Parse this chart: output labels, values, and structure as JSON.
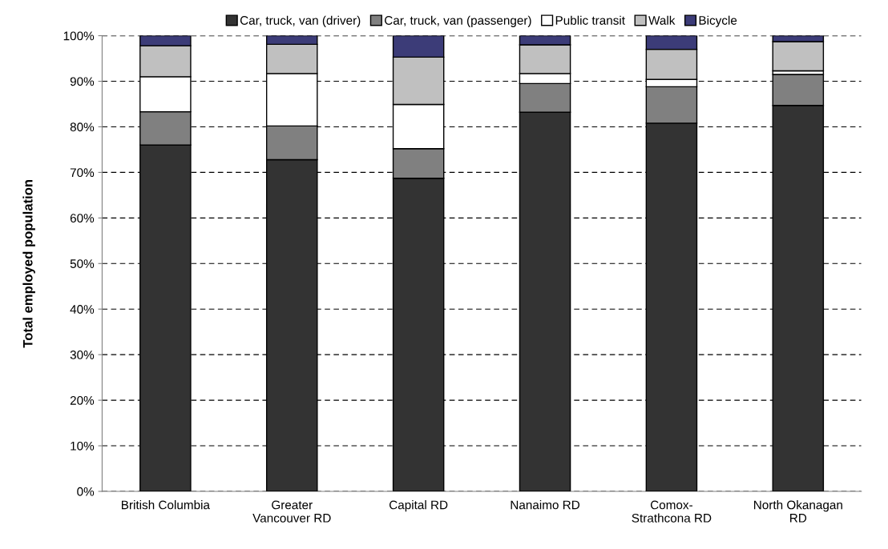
{
  "chart_data": {
    "type": "bar",
    "stacked": true,
    "ylabel": "Total employed population",
    "categories": [
      "British Columbia",
      "Greater\nVancouver RD",
      "Capital RD",
      "Nanaimo RD",
      "Comox-\nStrathcona RD",
      "North Okanagan\nRD"
    ],
    "series": [
      {
        "name": "Car, truck, van (driver)",
        "color": "#333333",
        "values": [
          76.0,
          72.8,
          68.7,
          83.2,
          80.8,
          84.7
        ]
      },
      {
        "name": "Car, truck, van (passenger)",
        "color": "#808080",
        "values": [
          7.3,
          7.4,
          6.5,
          6.3,
          8.0,
          6.8
        ]
      },
      {
        "name": "Public transit",
        "color": "#ffffff",
        "values": [
          7.7,
          11.5,
          9.7,
          2.2,
          1.6,
          0.8
        ]
      },
      {
        "name": "Walk",
        "color": "#c0c0c0",
        "values": [
          6.8,
          6.4,
          10.4,
          6.3,
          6.6,
          6.4
        ]
      },
      {
        "name": "Bicycle",
        "color": "#3c3c78",
        "values": [
          2.2,
          1.9,
          4.7,
          2.0,
          3.0,
          1.3
        ]
      }
    ],
    "ylim": [
      0,
      100
    ],
    "yticks": [
      {
        "value": 0,
        "label": "0%"
      },
      {
        "value": 10,
        "label": "10%"
      },
      {
        "value": 20,
        "label": "20%"
      },
      {
        "value": 30,
        "label": "30%"
      },
      {
        "value": 40,
        "label": "40%"
      },
      {
        "value": 50,
        "label": "50%"
      },
      {
        "value": 60,
        "label": "60%"
      },
      {
        "value": 70,
        "label": "70%"
      },
      {
        "value": 80,
        "label": "80%"
      },
      {
        "value": 90,
        "label": "90%"
      },
      {
        "value": 100,
        "label": "100%"
      }
    ],
    "grid": "y",
    "legend": "top"
  }
}
